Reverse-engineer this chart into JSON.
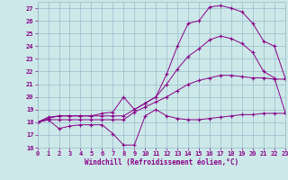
{
  "xlabel": "Windchill (Refroidissement éolien,°C)",
  "bg_color": "#cce8e8",
  "grid_color": "#99bbcc",
  "line_color": "#880088",
  "xlim": [
    0,
    23
  ],
  "ylim": [
    16,
    27.5
  ],
  "yticks": [
    16,
    17,
    18,
    19,
    20,
    21,
    22,
    23,
    24,
    25,
    26,
    27
  ],
  "xticks": [
    0,
    1,
    2,
    3,
    4,
    5,
    6,
    7,
    8,
    9,
    10,
    11,
    12,
    13,
    14,
    15,
    16,
    17,
    18,
    19,
    20,
    21,
    22,
    23
  ],
  "series": [
    {
      "x": [
        0,
        1,
        2,
        3,
        4,
        5,
        6,
        7,
        8,
        9,
        10,
        11,
        12,
        13,
        14,
        15,
        16,
        17,
        18,
        19,
        20,
        21,
        22,
        23
      ],
      "y": [
        18.0,
        18.2,
        17.5,
        17.7,
        17.8,
        17.8,
        17.8,
        17.1,
        16.2,
        16.2,
        18.5,
        19.0,
        18.5,
        18.3,
        18.2,
        18.2,
        18.3,
        18.4,
        18.5,
        18.6,
        18.6,
        18.7,
        18.7,
        18.7
      ]
    },
    {
      "x": [
        0,
        1,
        2,
        3,
        4,
        5,
        6,
        7,
        8,
        9,
        10,
        11,
        12,
        13,
        14,
        15,
        16,
        17,
        18,
        19,
        20,
        21,
        22,
        23
      ],
      "y": [
        18.0,
        18.2,
        18.2,
        18.2,
        18.2,
        18.2,
        18.2,
        18.2,
        18.2,
        18.8,
        19.2,
        19.6,
        20.0,
        20.5,
        21.0,
        21.3,
        21.5,
        21.7,
        21.7,
        21.6,
        21.5,
        21.5,
        21.4,
        21.4
      ]
    },
    {
      "x": [
        0,
        1,
        2,
        3,
        4,
        5,
        6,
        7,
        8,
        9,
        10,
        11,
        12,
        13,
        14,
        15,
        16,
        17,
        18,
        19,
        20,
        21,
        22,
        23
      ],
      "y": [
        18.0,
        18.4,
        18.5,
        18.5,
        18.5,
        18.5,
        18.7,
        18.8,
        20.0,
        19.0,
        19.5,
        20.0,
        21.8,
        24.0,
        25.8,
        26.0,
        27.1,
        27.2,
        27.0,
        26.7,
        25.8,
        24.4,
        24.0,
        21.5
      ]
    },
    {
      "x": [
        0,
        1,
        2,
        3,
        4,
        5,
        6,
        7,
        8,
        9,
        10,
        11,
        12,
        13,
        14,
        15,
        16,
        17,
        18,
        19,
        20,
        21,
        22,
        23
      ],
      "y": [
        18.0,
        18.3,
        18.5,
        18.5,
        18.5,
        18.5,
        18.5,
        18.5,
        18.5,
        19.0,
        19.5,
        20.0,
        21.0,
        22.2,
        23.2,
        23.8,
        24.5,
        24.8,
        24.6,
        24.2,
        23.5,
        22.0,
        21.5,
        18.8
      ]
    }
  ]
}
